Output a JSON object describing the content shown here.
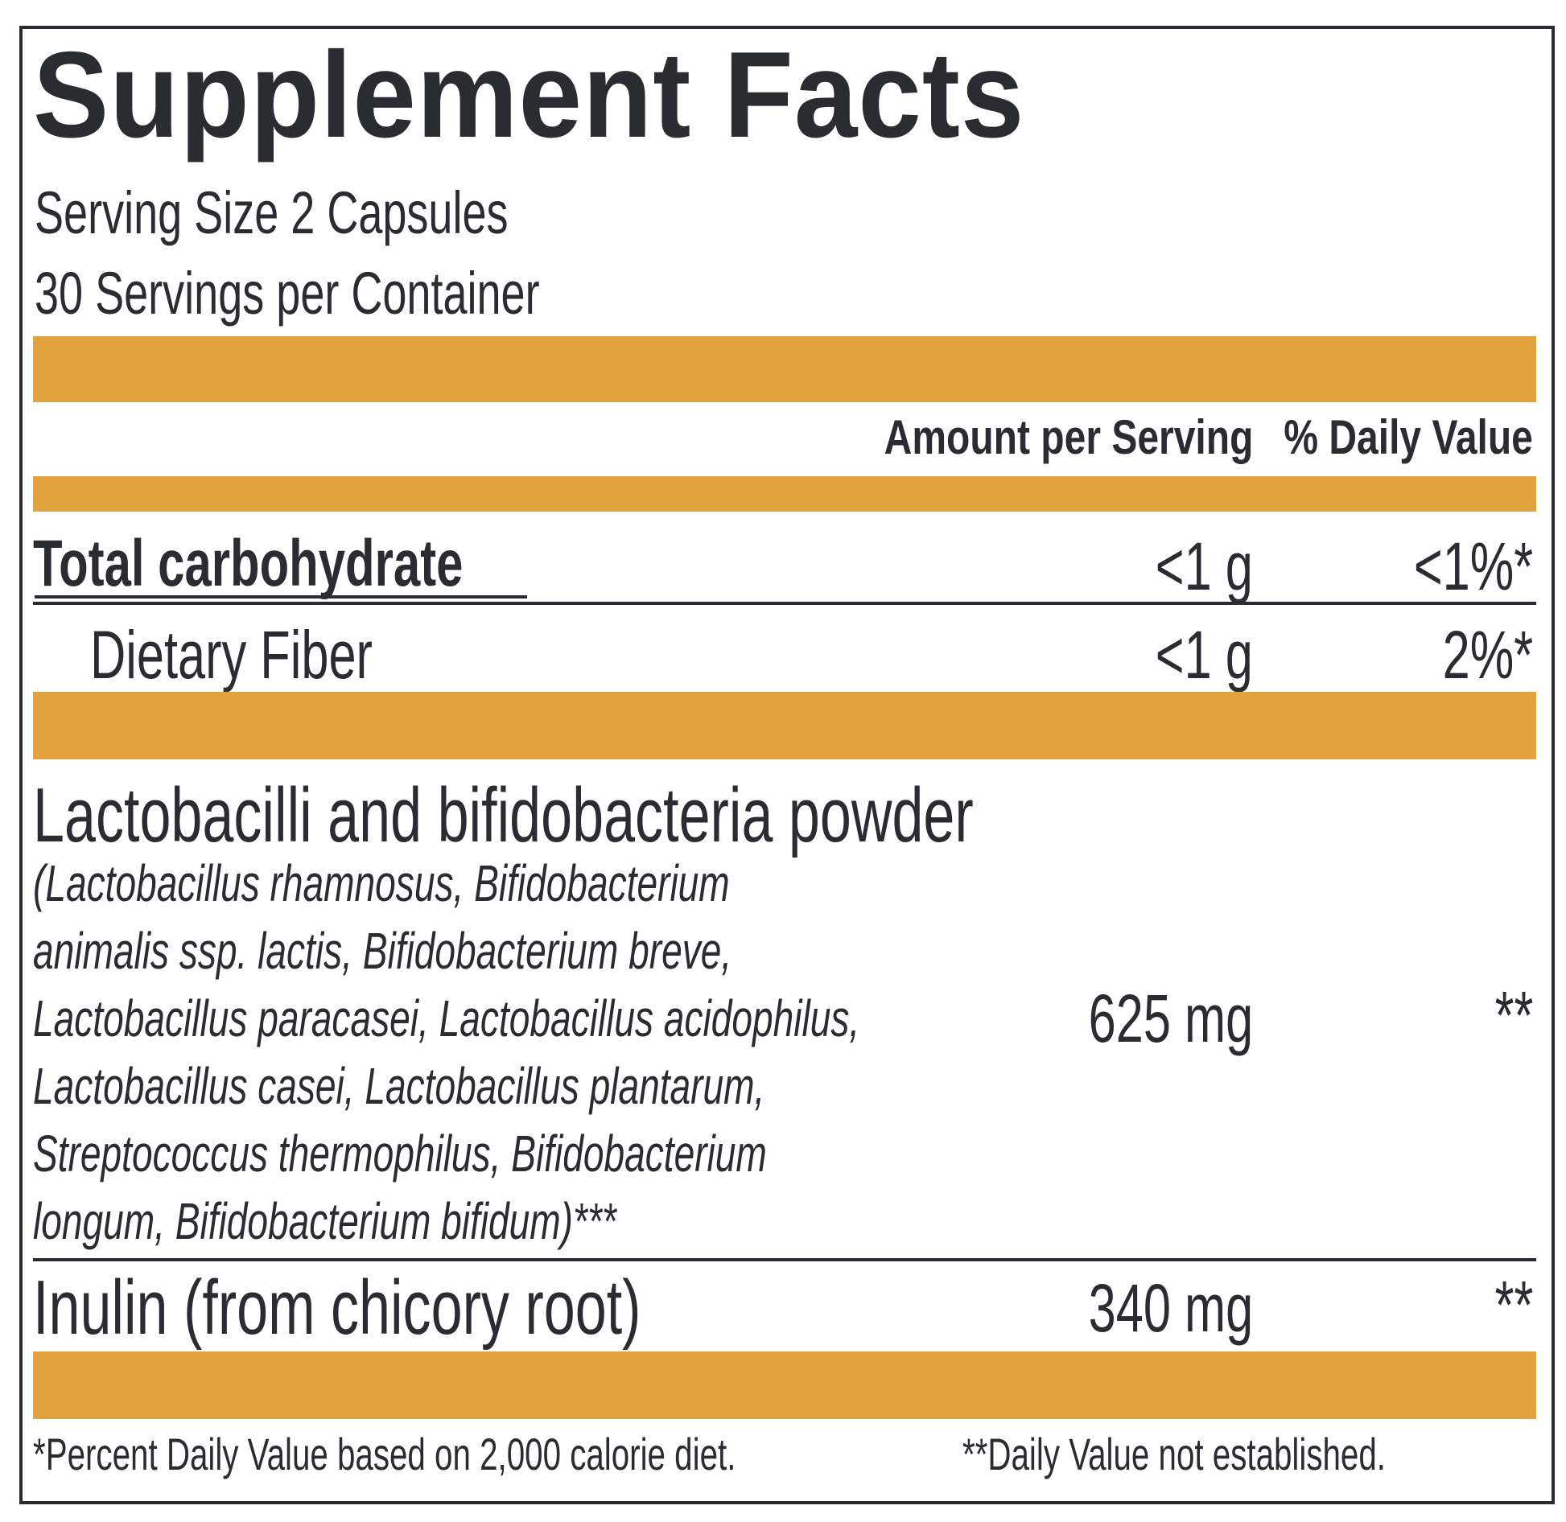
{
  "title": "Supplement Facts",
  "serving_size": "Serving Size 2 Capsules",
  "servings_per_container": "30 Servings per Container",
  "headers": {
    "amount": "Amount per Serving",
    "dv": "% Daily Value"
  },
  "rows": [
    {
      "name": "Total carbohydrate",
      "amount": "<1 g",
      "dv": "<1%*"
    },
    {
      "name": "Dietary Fiber",
      "amount": "<1 g",
      "dv": "2%*"
    },
    {
      "name": "Lactobacilli and bifidobacteria powder",
      "detail_lines": [
        "(Lactobacillus rhamnosus, Bifidobacterium",
        "animalis ssp. lactis, Bifidobacterium breve,",
        "Lactobacillus paracasei, Lactobacillus acidophilus,",
        "Lactobacillus casei, Lactobacillus plantarum,",
        "Streptococcus thermophilus, Bifidobacterium",
        "longum, Bifidobacterium bifidum)***"
      ],
      "amount": "625 mg",
      "dv": "**"
    },
    {
      "name": "Inulin (from chicory root)",
      "amount": "340 mg",
      "dv": "**"
    }
  ],
  "footnotes": {
    "percent": "*Percent Daily Value based on 2,000 calorie diet.",
    "not_established": "**Daily Value not established."
  },
  "colors": {
    "accent": "#e2a33f",
    "text": "#2b2c31"
  }
}
